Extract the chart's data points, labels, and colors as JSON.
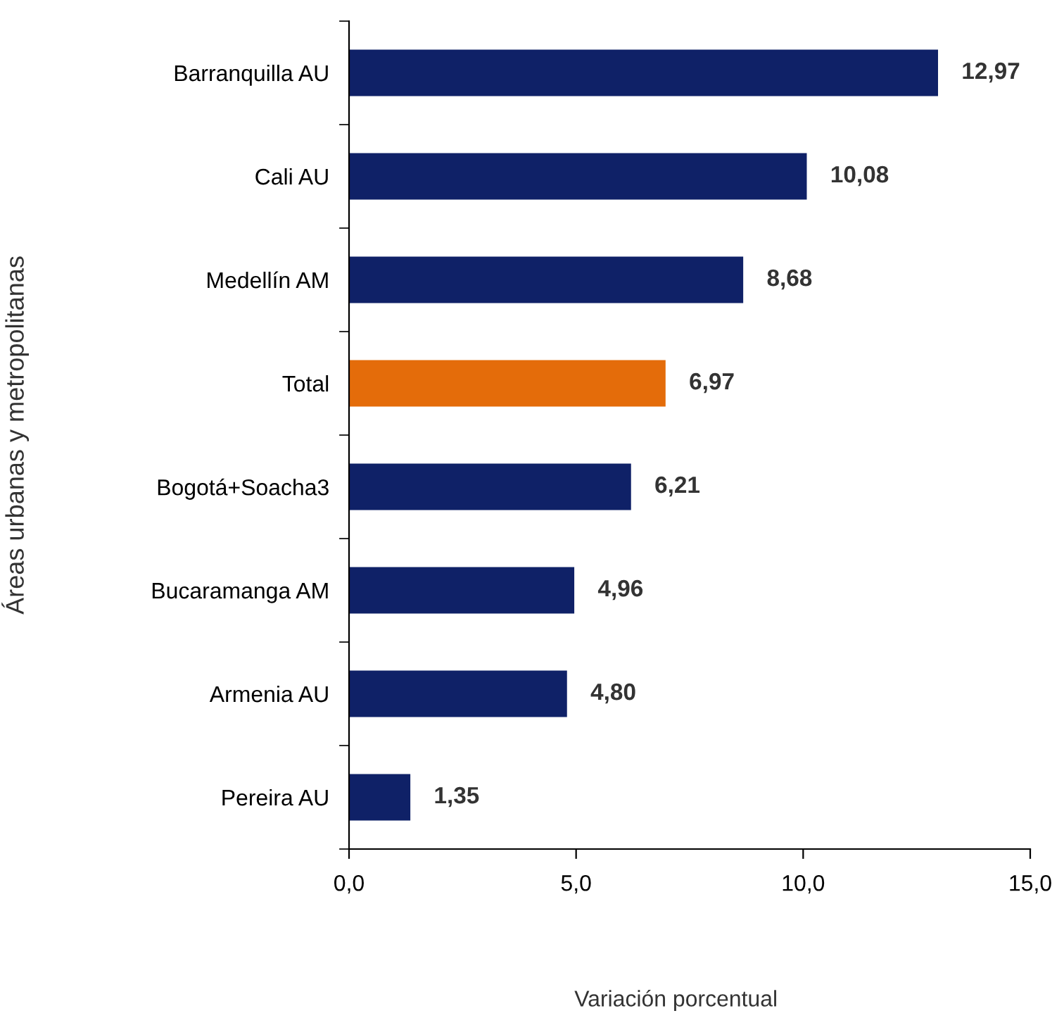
{
  "chart_data": {
    "type": "bar",
    "orientation": "horizontal",
    "xlabel": "Variación porcentual",
    "ylabel": "Áreas urbanas y metropolitanas",
    "categories": [
      "Barranquilla AU",
      "Cali AU",
      "Medellín AM",
      "Total",
      "Bogotá+Soacha3",
      "Bucaramanga AM",
      "Armenia AU",
      "Pereira AU"
    ],
    "values": [
      12.97,
      10.08,
      8.68,
      6.97,
      6.21,
      4.96,
      4.8,
      1.35
    ],
    "colors": [
      "#0f2167",
      "#0f2167",
      "#0f2167",
      "#e46c0a",
      "#0f2167",
      "#0f2167",
      "#0f2167",
      "#0f2167"
    ],
    "value_labels": [
      "12,97",
      "10,08",
      "8,68",
      "6,97",
      "6,21",
      "4,96",
      "4,80",
      "1,35"
    ],
    "xlim": [
      0,
      15
    ],
    "xticks": [
      {
        "value": 0,
        "label": "0,0"
      },
      {
        "value": 5,
        "label": "5,0"
      },
      {
        "value": 10,
        "label": "10,0"
      },
      {
        "value": 15,
        "label": "15,0"
      }
    ],
    "grid": false,
    "legend": false
  }
}
